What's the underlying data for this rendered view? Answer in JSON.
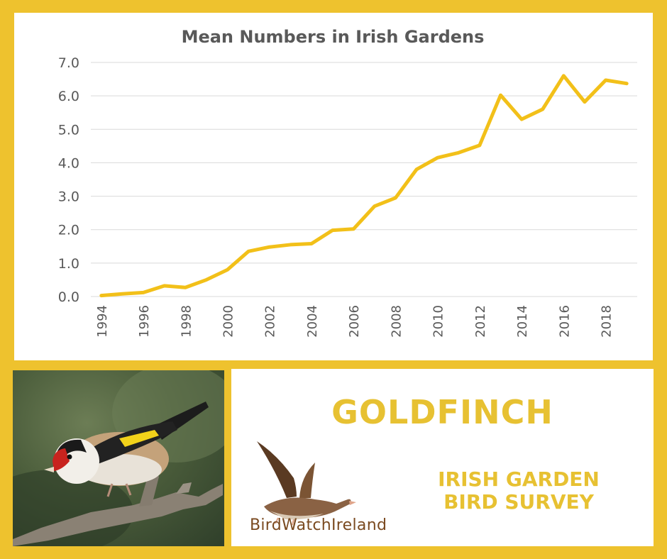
{
  "chart_data": {
    "type": "line",
    "title": "Mean Numbers in Irish Gardens",
    "x": [
      1994,
      1995,
      1996,
      1997,
      1998,
      1999,
      2000,
      2001,
      2002,
      2003,
      2004,
      2005,
      2006,
      2007,
      2008,
      2009,
      2010,
      2011,
      2012,
      2013,
      2014,
      2015,
      2016,
      2017,
      2018,
      2019
    ],
    "x_tick_labels": [
      "1994",
      "1996",
      "1998",
      "2000",
      "2002",
      "2004",
      "2006",
      "2008",
      "2010",
      "2012",
      "2014",
      "2016",
      "2018"
    ],
    "y_tick_labels": [
      "0.0",
      "1.0",
      "2.0",
      "3.0",
      "4.0",
      "5.0",
      "6.0",
      "7.0"
    ],
    "series": [
      {
        "values": [
          0.03,
          0.08,
          0.12,
          0.32,
          0.27,
          0.5,
          0.8,
          1.35,
          1.48,
          1.55,
          1.58,
          1.98,
          2.02,
          2.7,
          2.95,
          3.8,
          4.15,
          4.3,
          4.52,
          6.02,
          5.3,
          5.6,
          6.6,
          5.82,
          6.47,
          6.37
        ],
        "color": "#f2c019"
      }
    ],
    "ylim": [
      0,
      7
    ],
    "grid": true,
    "line_color": "#f2c019"
  },
  "species_name": "GOLDFINCH",
  "survey_name": [
    "IRISH GARDEN",
    "BIRD SURVEY"
  ],
  "logo": {
    "text": "BirdWatchIreland",
    "icon": "goose-logo-icon"
  },
  "photo": {
    "icon": "goldfinch-photo"
  },
  "colors": {
    "border": "#eec22e",
    "accent": "#e7c132",
    "grid": "#d9d9d9",
    "axis_text": "#595959",
    "logo_text": "#7a4a20"
  }
}
